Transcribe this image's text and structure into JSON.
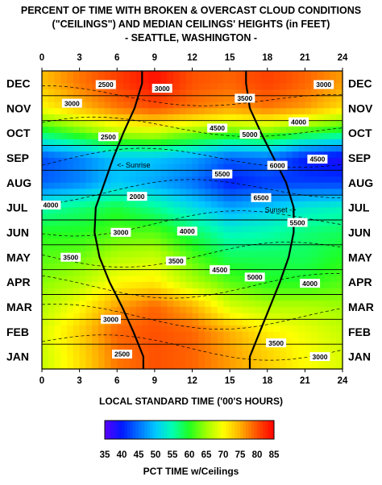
{
  "title_lines": [
    "PERCENT OF TIME WITH BROKEN & OVERCAST CLOUD CONDITIONS",
    "(\"CEILINGS\") AND MEDIAN CEILINGS' HEIGHTS (in FEET)",
    "- SEATTLE, WASHINGTON -"
  ],
  "chart_data": {
    "type": "heatmap",
    "title": "PERCENT OF TIME WITH BROKEN & OVERCAST CLOUD CONDITIONS (\"CEILINGS\") AND MEDIAN CEILINGS' HEIGHTS (in FEET) - SEATTLE, WASHINGTON -",
    "xlabel": "LOCAL STANDARD TIME ('00'S HOURS)",
    "x_ticks": [
      0,
      3,
      6,
      9,
      12,
      15,
      18,
      21,
      24
    ],
    "xlim": [
      0,
      24
    ],
    "months": [
      "JAN",
      "FEB",
      "MAR",
      "APR",
      "MAY",
      "JUN",
      "JUL",
      "AUG",
      "SEP",
      "OCT",
      "NOV",
      "DEC"
    ],
    "colorbar": {
      "label": "PCT TIME w/Ceilings",
      "ticks": [
        35,
        40,
        45,
        50,
        55,
        60,
        65,
        70,
        75,
        80,
        85
      ],
      "range": [
        35,
        85
      ]
    },
    "hours_grid": [
      0,
      3,
      6,
      9,
      12,
      15,
      18,
      21,
      24
    ],
    "pct_grid": [
      [
        67,
        72,
        78,
        80,
        79,
        76,
        73,
        70,
        68
      ],
      [
        68,
        73,
        79,
        80,
        79,
        75,
        71,
        69,
        67
      ],
      [
        66,
        70,
        76,
        79,
        75,
        68,
        66,
        66,
        65
      ],
      [
        64,
        66,
        70,
        71,
        66,
        62,
        60,
        60,
        62
      ],
      [
        62,
        63,
        66,
        67,
        62,
        58,
        58,
        58,
        60
      ],
      [
        60,
        60,
        62,
        62,
        58,
        54,
        55,
        57,
        58
      ],
      [
        55,
        57,
        59,
        56,
        52,
        48,
        50,
        53,
        54
      ],
      [
        44,
        46,
        50,
        48,
        45,
        40,
        42,
        42,
        42
      ],
      [
        43,
        46,
        50,
        50,
        48,
        44,
        45,
        40,
        38
      ],
      [
        58,
        62,
        66,
        67,
        64,
        62,
        63,
        60,
        58
      ],
      [
        70,
        74,
        78,
        80,
        78,
        76,
        78,
        76,
        72
      ],
      [
        74,
        78,
        81,
        84,
        80,
        79,
        81,
        79,
        76
      ]
    ],
    "sunrise_label": "<- Sunrise",
    "sunset_label": "Sunset ->",
    "sunrise_hours": [
      8.1,
      7.3,
      6.4,
      5.4,
      4.6,
      4.2,
      4.3,
      5.0,
      5.7,
      6.5,
      7.4,
      8.0
    ],
    "sunset_hours": [
      16.6,
      17.4,
      18.2,
      19.0,
      19.7,
      20.1,
      20.1,
      19.5,
      18.5,
      17.5,
      16.6,
      16.3
    ],
    "contour_labels": [
      {
        "text": "2500",
        "hour": 6.4,
        "month": 1.1
      },
      {
        "text": "3000",
        "hour": 22.2,
        "month": 1.0
      },
      {
        "text": "3500",
        "hour": 18.7,
        "month": 1.55
      },
      {
        "text": "3000",
        "hour": 5.5,
        "month": 2.5
      },
      {
        "text": "4000",
        "hour": 21.4,
        "month": 3.95
      },
      {
        "text": "4500",
        "hour": 14.2,
        "month": 4.5
      },
      {
        "text": "5000",
        "hour": 17.0,
        "month": 4.2
      },
      {
        "text": "3500",
        "hour": 2.3,
        "month": 5.0
      },
      {
        "text": "3500",
        "hour": 10.7,
        "month": 4.85
      },
      {
        "text": "3000",
        "hour": 6.3,
        "month": 6.0
      },
      {
        "text": "4000",
        "hour": 11.6,
        "month": 6.05
      },
      {
        "text": "5500",
        "hour": 20.4,
        "month": 6.4
      },
      {
        "text": "4000",
        "hour": 0.7,
        "month": 7.1
      },
      {
        "text": "2000",
        "hour": 7.6,
        "month": 7.45
      },
      {
        "text": "6500",
        "hour": 17.5,
        "month": 7.4
      },
      {
        "text": "5500",
        "hour": 14.4,
        "month": 8.35
      },
      {
        "text": "6000",
        "hour": 18.8,
        "month": 8.7
      },
      {
        "text": "4500",
        "hour": 22.0,
        "month": 8.95
      },
      {
        "text": "2500",
        "hour": 5.3,
        "month": 9.85
      },
      {
        "text": "4500",
        "hour": 14.0,
        "month": 10.2
      },
      {
        "text": "5000",
        "hour": 16.6,
        "month": 9.95
      },
      {
        "text": "4000",
        "hour": 20.5,
        "month": 10.45
      },
      {
        "text": "3000",
        "hour": 2.4,
        "month": 11.2
      },
      {
        "text": "3500",
        "hour": 16.2,
        "month": 11.4
      },
      {
        "text": "2500",
        "hour": 5.1,
        "month": 11.95
      },
      {
        "text": "3000",
        "hour": 9.6,
        "month": 11.8
      },
      {
        "text": "3000",
        "hour": 22.5,
        "month": 11.95
      }
    ],
    "colors": {
      "scale": [
        "#5a00ff",
        "#0018ff",
        "#0070ff",
        "#00c8ff",
        "#00ffb0",
        "#20ff20",
        "#a0ff00",
        "#ffff00",
        "#ffb000",
        "#ff5000",
        "#ff0000"
      ]
    }
  }
}
